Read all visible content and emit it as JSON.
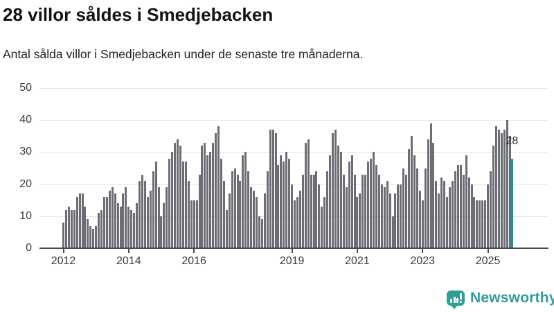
{
  "header": {
    "title": "28 villor såldes i Smedjebacken",
    "subtitle": "Antal sålda villor i Smedjebacken under de senaste tre månaderna."
  },
  "annotation": {
    "last_value_label": "28"
  },
  "branding": {
    "logo_text": "Newsworthy"
  },
  "colors": {
    "bar": "#6d6d75",
    "highlight": "#00a0a6",
    "grid": "#e4e4e4",
    "axis": "#4a4a4a",
    "tick_text": "#3a3a3a",
    "brand": "#2f9e97"
  },
  "chart_data": {
    "type": "bar",
    "title": "28 villor såldes i Smedjebacken",
    "subtitle": "Antal sålda villor i Smedjebacken under de senaste tre månaderna.",
    "xlabel": "",
    "ylabel": "",
    "frequency": "monthly",
    "x_start": "2012-01",
    "x_end": "2025-10",
    "ylim": [
      0,
      50
    ],
    "y_ticks": [
      0,
      10,
      20,
      30,
      40,
      50
    ],
    "grid": true,
    "legend": false,
    "x_tick_labels": [
      {
        "label": "2012",
        "month_index": 0
      },
      {
        "label": "2014",
        "month_index": 24
      },
      {
        "label": "2016",
        "month_index": 48
      },
      {
        "label": "2019",
        "month_index": 84
      },
      {
        "label": "2021",
        "month_index": 108
      },
      {
        "label": "2023",
        "month_index": 132
      },
      {
        "label": "2025",
        "month_index": 156
      }
    ],
    "values": [
      8,
      12,
      13,
      12,
      12,
      16,
      17,
      17,
      13,
      9,
      7,
      6,
      7,
      11,
      12,
      16,
      16,
      18,
      19,
      17,
      14,
      13,
      17,
      19,
      13,
      12,
      11,
      14,
      21,
      23,
      21,
      16,
      18,
      24,
      27,
      19,
      10,
      14,
      19,
      28,
      30,
      33,
      34,
      32,
      27,
      27,
      21,
      15,
      15,
      15,
      23,
      32,
      33,
      29,
      30,
      33,
      36,
      38,
      28,
      21,
      12,
      17,
      24,
      25,
      23,
      21,
      29,
      30,
      24,
      19,
      18,
      16,
      10,
      9,
      17,
      24,
      37,
      37,
      36,
      26,
      29,
      27,
      30,
      28,
      20,
      15,
      16,
      18,
      23,
      33,
      34,
      23,
      23,
      24,
      20,
      13,
      16,
      24,
      29,
      36,
      37,
      32,
      30,
      23,
      19,
      27,
      29,
      23,
      16,
      17,
      23,
      23,
      27,
      28,
      30,
      26,
      23,
      20,
      19,
      21,
      17,
      10,
      17,
      20,
      20,
      25,
      23,
      31,
      35,
      29,
      25,
      18,
      15,
      25,
      34,
      39,
      33,
      21,
      17,
      22,
      21,
      16,
      19,
      21,
      24,
      26,
      26,
      23,
      29,
      22,
      20,
      16,
      15,
      15,
      15,
      15,
      20,
      24,
      32,
      38,
      37,
      36,
      37,
      40,
      35,
      28
    ],
    "highlight_last_bar": true,
    "highlighted_value": 28
  }
}
